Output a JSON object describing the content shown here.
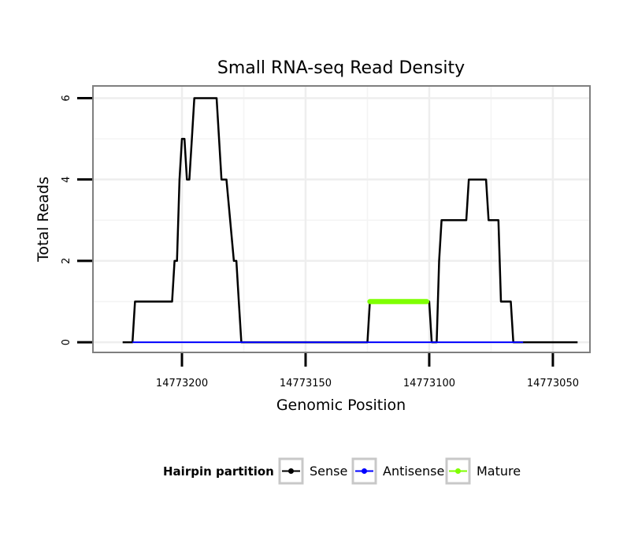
{
  "chart_data": {
    "type": "line",
    "title": "Small RNA-seq Read Density",
    "xlabel": "Genomic Position",
    "ylabel": "Total Reads",
    "x_reversed": true,
    "xlim": [
      14773236,
      14773035
    ],
    "ylim": [
      -0.25,
      6.3
    ],
    "x_ticks": [
      14773200,
      14773150,
      14773100,
      14773050
    ],
    "x_tick_labels": [
      "14773200",
      "14773150",
      "14773100",
      "14773050"
    ],
    "y_ticks": [
      0,
      2,
      4,
      6
    ],
    "y_tick_labels": [
      "0",
      "2",
      "4",
      "6"
    ],
    "grid": true,
    "legend": {
      "title": "Hairpin partition",
      "position": "bottom",
      "entries": [
        "Sense",
        "Antisense",
        "Mature"
      ]
    },
    "series": [
      {
        "name": "Sense",
        "color": "#000000",
        "x": [
          14773224,
          14773220,
          14773219,
          14773204,
          14773203,
          14773202,
          14773201,
          14773200,
          14773199,
          14773198,
          14773197,
          14773196,
          14773195,
          14773194,
          14773193,
          14773192,
          14773191,
          14773186,
          14773185,
          14773184,
          14773183,
          14773182,
          14773179,
          14773178,
          14773177,
          14773176,
          14773173,
          14773126,
          14773125,
          14773124,
          14773101,
          14773100,
          14773099,
          14773098,
          14773097,
          14773096,
          14773095,
          14773085,
          14773084,
          14773077,
          14773076,
          14773072,
          14773071,
          14773067,
          14773066,
          14773062,
          14773061,
          14773040
        ],
        "y": [
          0,
          0,
          1,
          1,
          2,
          2,
          4,
          5,
          5,
          4,
          4,
          5,
          6,
          6,
          6,
          6,
          6,
          6,
          5,
          4,
          4,
          4,
          2,
          2,
          1,
          0,
          0,
          0,
          0,
          1,
          1,
          1,
          0,
          0,
          0,
          2,
          3,
          3,
          4,
          4,
          3,
          3,
          1,
          1,
          0,
          0,
          0,
          0
        ]
      },
      {
        "name": "Antisense",
        "color": "#0000ff",
        "x": [
          14773220,
          14773062
        ],
        "y": [
          0,
          0
        ]
      },
      {
        "name": "Mature",
        "color": "#7fff00",
        "x": [
          14773124,
          14773101
        ],
        "y": [
          1,
          1
        ]
      }
    ]
  }
}
